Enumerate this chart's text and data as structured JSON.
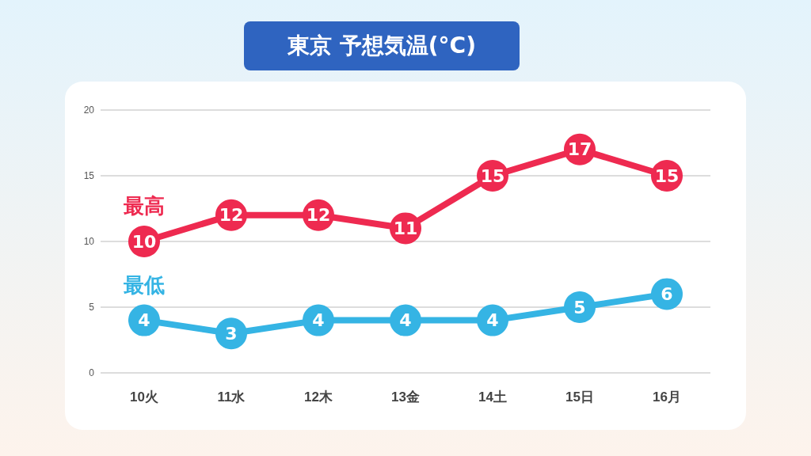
{
  "chart_data": {
    "type": "line",
    "title": "東京 予想気温(°C)",
    "categories": [
      "10火",
      "11水",
      "12木",
      "13金",
      "14土",
      "15日",
      "16月"
    ],
    "series": [
      {
        "name": "最高",
        "color": "#ee2a50",
        "values": [
          10,
          12,
          12,
          11,
          15,
          17,
          15
        ]
      },
      {
        "name": "最低",
        "color": "#35b4e4",
        "values": [
          4,
          3,
          4,
          4,
          4,
          5,
          6
        ]
      }
    ],
    "ylim": [
      0,
      20
    ],
    "yticks": [
      0,
      5,
      10,
      15,
      20
    ],
    "grid": "y",
    "data_labels": true,
    "marker": "circle",
    "line_style": "solid"
  }
}
